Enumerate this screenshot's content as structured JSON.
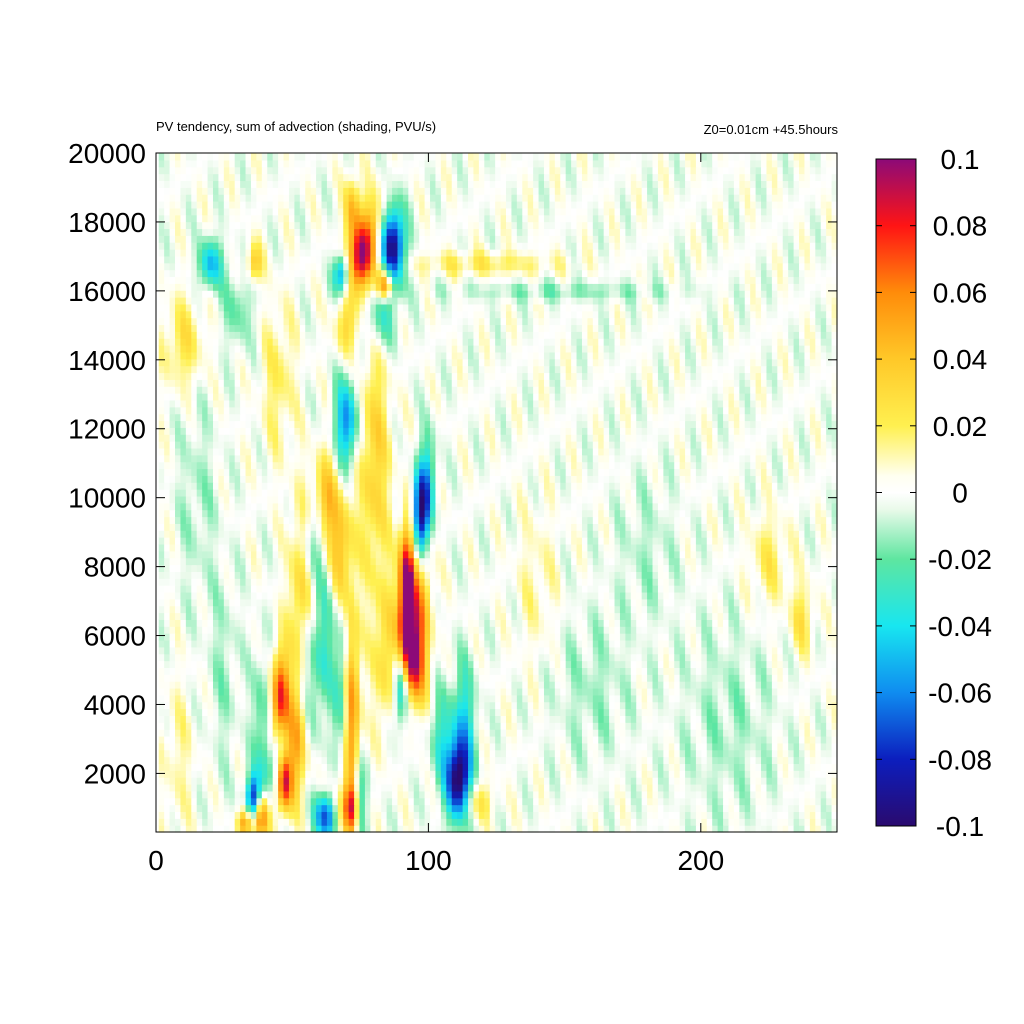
{
  "chart_data": {
    "type": "heatmap",
    "title": "PV tendency, sum of advection (shading, PVU/s)",
    "subtitle": "Z0=0.01cm   +45.5hours",
    "xlim": [
      0,
      250
    ],
    "ylim": [
      300,
      20000
    ],
    "x_ticks": [
      0,
      100,
      200
    ],
    "y_ticks": [
      2000,
      4000,
      6000,
      8000,
      10000,
      12000,
      14000,
      16000,
      18000,
      20000
    ],
    "x_tick_labels": [
      "0",
      "100",
      "200"
    ],
    "y_tick_labels": [
      "2000",
      "4000",
      "6000",
      "8000",
      "10000",
      "12000",
      "14000",
      "16000",
      "18000",
      "20000"
    ],
    "colorbar": {
      "range": [
        -0.1,
        0.1
      ],
      "tick_values": [
        0.1,
        0.08,
        0.06,
        0.04,
        0.02,
        0,
        -0.02,
        -0.04,
        -0.06,
        -0.08,
        -0.1
      ],
      "tick_labels": [
        "0.1",
        "0.08",
        "0.06",
        "0.04",
        "0.02",
        "0",
        "-0.02",
        "-0.04",
        "-0.06",
        "-0.08",
        "-0.1"
      ],
      "stops": [
        {
          "value": -0.1,
          "color": "#2a0a6e"
        },
        {
          "value": -0.08,
          "color": "#0c1ebe"
        },
        {
          "value": -0.06,
          "color": "#0f8cf0"
        },
        {
          "value": -0.04,
          "color": "#18e6f0"
        },
        {
          "value": -0.02,
          "color": "#5ee6a0"
        },
        {
          "value": -0.005,
          "color": "#eafaea"
        },
        {
          "value": 0,
          "color": "#ffffff"
        },
        {
          "value": 0.005,
          "color": "#fffff0"
        },
        {
          "value": 0.02,
          "color": "#fff050"
        },
        {
          "value": 0.04,
          "color": "#ffc828"
        },
        {
          "value": 0.06,
          "color": "#ff8c0a"
        },
        {
          "value": 0.08,
          "color": "#ff1414"
        },
        {
          "value": 0.1,
          "color": "#8c0a78"
        }
      ]
    },
    "features": [
      {
        "x": 36,
        "y": 1200,
        "sx": 2,
        "sy": 500,
        "value": -0.1
      },
      {
        "x": 38,
        "y": 800,
        "sx": 2,
        "sy": 500,
        "value": 0.09
      },
      {
        "x": 33,
        "y": 600,
        "sx": 2,
        "sy": 300,
        "value": 0.06
      },
      {
        "x": 47,
        "y": 1800,
        "sx": 2,
        "sy": 600,
        "value": 0.1
      },
      {
        "x": 44,
        "y": 2200,
        "sx": 3,
        "sy": 700,
        "value": -0.05
      },
      {
        "x": 46,
        "y": 4300,
        "sx": 2,
        "sy": 900,
        "value": 0.07
      },
      {
        "x": 43,
        "y": 3200,
        "sx": 2,
        "sy": 1500,
        "value": 0.04
      },
      {
        "x": 40,
        "y": 3500,
        "sx": 3,
        "sy": 1500,
        "value": -0.03
      },
      {
        "x": 52,
        "y": 3000,
        "sx": 3,
        "sy": 1200,
        "value": 0.05
      },
      {
        "x": 56,
        "y": 4500,
        "sx": 3,
        "sy": 1500,
        "value": -0.03
      },
      {
        "x": 53,
        "y": 7000,
        "sx": 3,
        "sy": 2000,
        "value": 0.035
      },
      {
        "x": 58,
        "y": 8800,
        "sx": 3,
        "sy": 800,
        "value": -0.03
      },
      {
        "x": 63,
        "y": 800,
        "sx": 3,
        "sy": 500,
        "value": -0.1
      },
      {
        "x": 66,
        "y": 1000,
        "sx": 3,
        "sy": 600,
        "value": 0.05
      },
      {
        "x": 72,
        "y": 1000,
        "sx": 2,
        "sy": 500,
        "value": 0.09
      },
      {
        "x": 74,
        "y": 1200,
        "sx": 2,
        "sy": 700,
        "value": -0.06
      },
      {
        "x": 72,
        "y": 3800,
        "sx": 2,
        "sy": 2000,
        "value": 0.06
      },
      {
        "x": 68,
        "y": 4500,
        "sx": 2,
        "sy": 1500,
        "value": -0.03
      },
      {
        "x": 62,
        "y": 6000,
        "sx": 3,
        "sy": 1500,
        "value": -0.025
      },
      {
        "x": 62,
        "y": 9800,
        "sx": 3,
        "sy": 1000,
        "value": 0.045
      },
      {
        "x": 68,
        "y": 8500,
        "sx": 3,
        "sy": 1200,
        "value": 0.04
      },
      {
        "x": 70,
        "y": 12200,
        "sx": 3,
        "sy": 900,
        "value": -0.06
      },
      {
        "x": 80,
        "y": 11000,
        "sx": 4,
        "sy": 2500,
        "value": 0.035
      },
      {
        "x": 84,
        "y": 5500,
        "sx": 3,
        "sy": 1500,
        "value": 0.03
      },
      {
        "x": 92,
        "y": 7500,
        "sx": 2,
        "sy": 1200,
        "value": 0.1
      },
      {
        "x": 93,
        "y": 5800,
        "sx": 3,
        "sy": 1000,
        "value": 0.07
      },
      {
        "x": 95,
        "y": 5000,
        "sx": 3,
        "sy": 800,
        "value": 0.04
      },
      {
        "x": 97,
        "y": 9500,
        "sx": 2,
        "sy": 900,
        "value": -0.1
      },
      {
        "x": 100,
        "y": 10500,
        "sx": 2,
        "sy": 1000,
        "value": -0.04
      },
      {
        "x": 90,
        "y": 4500,
        "sx": 2,
        "sy": 800,
        "value": -0.06
      },
      {
        "x": 97,
        "y": 7000,
        "sx": 3,
        "sy": 1500,
        "value": 0.04
      },
      {
        "x": 105,
        "y": 3000,
        "sx": 3,
        "sy": 1000,
        "value": -0.03
      },
      {
        "x": 111,
        "y": 1800,
        "sx": 3,
        "sy": 800,
        "value": -0.1
      },
      {
        "x": 113,
        "y": 3500,
        "sx": 3,
        "sy": 1200,
        "value": -0.04
      },
      {
        "x": 118,
        "y": 1200,
        "sx": 4,
        "sy": 400,
        "value": 0.025
      },
      {
        "x": 75,
        "y": 17000,
        "sx": 3,
        "sy": 700,
        "value": 0.1
      },
      {
        "x": 87,
        "y": 17300,
        "sx": 3,
        "sy": 800,
        "value": -0.1
      },
      {
        "x": 84,
        "y": 16200,
        "sx": 2,
        "sy": 300,
        "value": 0.08
      },
      {
        "x": 72,
        "y": 18500,
        "sx": 2,
        "sy": 600,
        "value": 0.04
      },
      {
        "x": 80,
        "y": 18000,
        "sx": 3,
        "sy": 700,
        "value": 0.035
      },
      {
        "x": 68,
        "y": 16500,
        "sx": 2,
        "sy": 400,
        "value": -0.06
      },
      {
        "x": 82,
        "y": 15200,
        "sx": 4,
        "sy": 700,
        "value": -0.03
      },
      {
        "x": 70,
        "y": 15000,
        "sx": 3,
        "sy": 600,
        "value": 0.03
      },
      {
        "x": 20,
        "y": 16800,
        "sx": 3,
        "sy": 500,
        "value": -0.05
      },
      {
        "x": 36,
        "y": 16800,
        "sx": 2,
        "sy": 400,
        "value": 0.04
      },
      {
        "x": 10,
        "y": 14500,
        "sx": 5,
        "sy": 900,
        "value": 0.025
      },
      {
        "x": 30,
        "y": 15500,
        "sx": 4,
        "sy": 800,
        "value": -0.02
      },
      {
        "x": 45,
        "y": 13500,
        "sx": 4,
        "sy": 1500,
        "value": 0.02
      },
      {
        "x": 120,
        "y": 16800,
        "sx": 20,
        "sy": 250,
        "value": 0.02
      },
      {
        "x": 150,
        "y": 16000,
        "sx": 30,
        "sy": 200,
        "value": -0.015
      },
      {
        "x": 225,
        "y": 8200,
        "sx": 5,
        "sy": 900,
        "value": 0.02
      },
      {
        "x": 237,
        "y": 6500,
        "sx": 3,
        "sy": 700,
        "value": 0.025
      },
      {
        "x": 160,
        "y": 4500,
        "sx": 10,
        "sy": 1500,
        "value": -0.012
      },
      {
        "x": 210,
        "y": 3500,
        "sx": 12,
        "sy": 2000,
        "value": -0.012
      },
      {
        "x": 140,
        "y": 7500,
        "sx": 5,
        "sy": 1500,
        "value": 0.012
      },
      {
        "x": 180,
        "y": 8500,
        "sx": 8,
        "sy": 1500,
        "value": -0.01
      },
      {
        "x": 15,
        "y": 10000,
        "sx": 5,
        "sy": 2000,
        "value": -0.012
      },
      {
        "x": 25,
        "y": 5000,
        "sx": 4,
        "sy": 2000,
        "value": -0.012
      },
      {
        "x": 8,
        "y": 2500,
        "sx": 4,
        "sy": 1500,
        "value": 0.012
      }
    ]
  }
}
